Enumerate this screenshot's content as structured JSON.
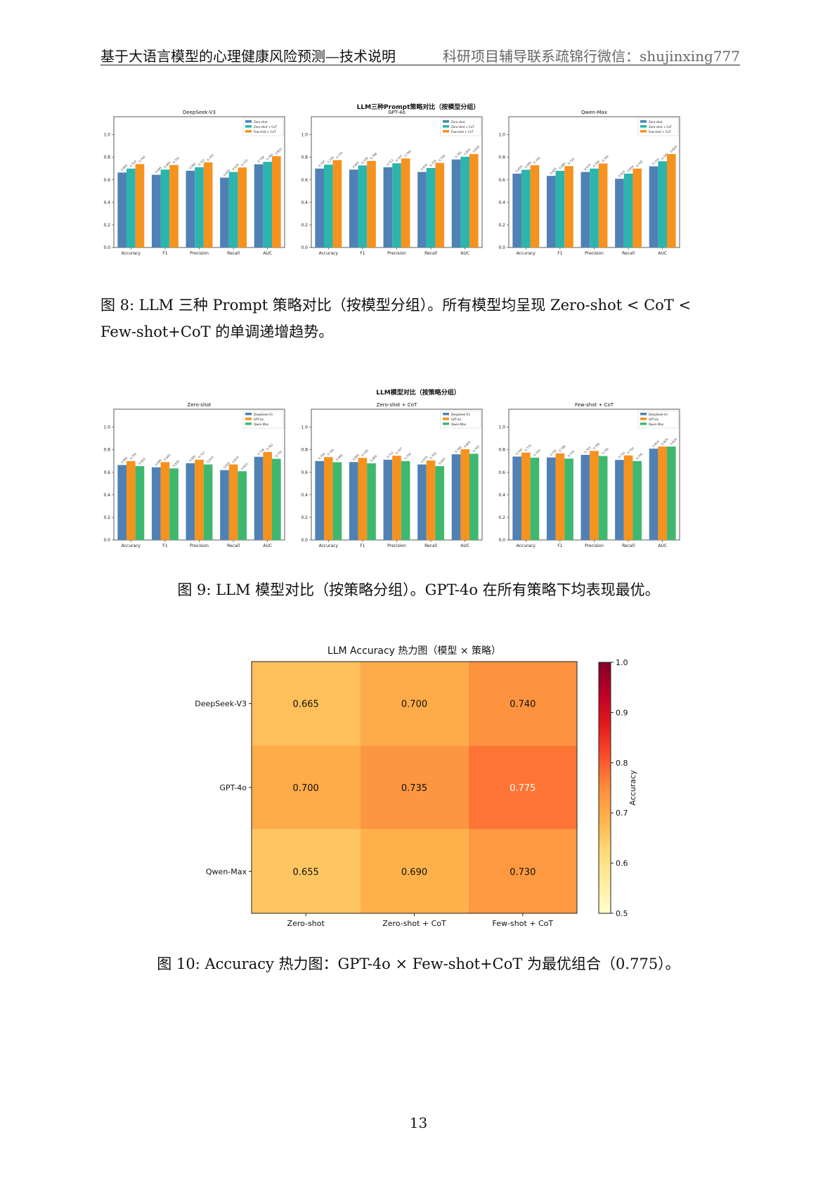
{
  "header": {
    "title": "基于大语言模型的心理健康风险预测—技术说明",
    "contact": "科研项目辅导联系疏锦行微信：shujinxing777"
  },
  "figure8": {
    "suptitle": "LLM三种Prompt策略对比（按模型分组）",
    "caption_line1": "图 8: LLM 三种 Prompt 策略对比（按模型分组）。所有模型均呈现 Zero-shot < CoT <",
    "caption_line2": "Few-shot+CoT 的单调递增趋势。"
  },
  "figure9": {
    "suptitle": "LLM模型对比（按策略分组）",
    "caption": "图 9: LLM 模型对比（按策略分组）。GPT-4o 在所有策略下均表现最优。"
  },
  "figure10": {
    "caption": "图 10: Accuracy 热力图：GPT-4o × Few-shot+CoT 为最优组合（0.775）。"
  },
  "page_number": "13",
  "chart_data": [
    {
      "type": "bar",
      "title": "DeepSeek-V3",
      "categories": [
        "Accuracy",
        "F1",
        "Precision",
        "Recall",
        "AUC"
      ],
      "series": [
        {
          "name": "Zero-shot",
          "values": [
            0.665,
            0.645,
            0.681,
            0.62,
            0.738
          ]
        },
        {
          "name": "Zero-shot + CoT",
          "values": [
            0.7,
            0.691,
            0.712,
            0.67,
            0.76
          ]
        },
        {
          "name": "Few-shot + CoT",
          "values": [
            0.74,
            0.732,
            0.755,
            0.71,
            0.81
          ]
        }
      ],
      "ylim": [
        0,
        1.0
      ],
      "yticks": [
        "0.0",
        "0.2",
        "0.4",
        "0.6",
        "0.8",
        "1.0"
      ],
      "legend": "top-right"
    },
    {
      "type": "bar",
      "title": "GPT-4o",
      "categories": [
        "Accuracy",
        "F1",
        "Precision",
        "Recall",
        "AUC"
      ],
      "series": [
        {
          "name": "Zero-shot",
          "values": [
            0.7,
            0.691,
            0.712,
            0.67,
            0.781
          ]
        },
        {
          "name": "Zero-shot + CoT",
          "values": [
            0.735,
            0.728,
            0.747,
            0.705,
            0.805
          ]
        },
        {
          "name": "Few-shot + CoT",
          "values": [
            0.775,
            0.768,
            0.79,
            0.75,
            0.829
          ]
        }
      ],
      "ylim": [
        0,
        1.0
      ],
      "yticks": [
        "0.0",
        "0.2",
        "0.4",
        "0.6",
        "0.8",
        "1.0"
      ],
      "legend": "top-right"
    },
    {
      "type": "bar",
      "title": "Qwen-Max",
      "categories": [
        "Accuracy",
        "F1",
        "Precision",
        "Recall",
        "AUC"
      ],
      "series": [
        {
          "name": "Zero-shot",
          "values": [
            0.655,
            0.635,
            0.67,
            0.61,
            0.72
          ]
        },
        {
          "name": "Zero-shot + CoT",
          "values": [
            0.69,
            0.68,
            0.7,
            0.655,
            0.765
          ]
        },
        {
          "name": "Few-shot + CoT",
          "values": [
            0.73,
            0.722,
            0.745,
            0.7,
            0.829
          ]
        }
      ],
      "ylim": [
        0,
        1.0
      ],
      "yticks": [
        "0.0",
        "0.2",
        "0.4",
        "0.6",
        "0.8",
        "1.0"
      ],
      "legend": "top-right"
    },
    {
      "type": "bar",
      "title": "Zero-shot",
      "categories": [
        "Accuracy",
        "F1",
        "Precision",
        "Recall",
        "AUC"
      ],
      "series": [
        {
          "name": "DeepSeek-V3",
          "values": [
            0.665,
            0.645,
            0.681,
            0.62,
            0.738
          ]
        },
        {
          "name": "GPT-4o",
          "values": [
            0.7,
            0.691,
            0.712,
            0.67,
            0.781
          ]
        },
        {
          "name": "Qwen-Max",
          "values": [
            0.655,
            0.635,
            0.67,
            0.61,
            0.72
          ]
        }
      ],
      "ylim": [
        0,
        1.0
      ],
      "yticks": [
        "0.0",
        "0.2",
        "0.4",
        "0.6",
        "0.8",
        "1.0"
      ],
      "legend": "top-right"
    },
    {
      "type": "bar",
      "title": "Zero-shot + CoT",
      "categories": [
        "Accuracy",
        "F1",
        "Precision",
        "Recall",
        "AUC"
      ],
      "series": [
        {
          "name": "DeepSeek-V3",
          "values": [
            0.7,
            0.691,
            0.712,
            0.67,
            0.76
          ]
        },
        {
          "name": "GPT-4o",
          "values": [
            0.735,
            0.728,
            0.747,
            0.705,
            0.805
          ]
        },
        {
          "name": "Qwen-Max",
          "values": [
            0.69,
            0.68,
            0.7,
            0.655,
            0.765
          ]
        }
      ],
      "ylim": [
        0,
        1.0
      ],
      "yticks": [
        "0.0",
        "0.2",
        "0.4",
        "0.6",
        "0.8",
        "1.0"
      ],
      "legend": "top-right"
    },
    {
      "type": "bar",
      "title": "Few-shot + CoT",
      "categories": [
        "Accuracy",
        "F1",
        "Precision",
        "Recall",
        "AUC"
      ],
      "series": [
        {
          "name": "DeepSeek-V3",
          "values": [
            0.74,
            0.732,
            0.755,
            0.71,
            0.81
          ]
        },
        {
          "name": "GPT-4o",
          "values": [
            0.775,
            0.768,
            0.79,
            0.75,
            0.829
          ]
        },
        {
          "name": "Qwen-Max",
          "values": [
            0.73,
            0.722,
            0.745,
            0.7,
            0.829
          ]
        }
      ],
      "ylim": [
        0,
        1.0
      ],
      "yticks": [
        "0.0",
        "0.2",
        "0.4",
        "0.6",
        "0.8",
        "1.0"
      ],
      "legend": "top-right"
    },
    {
      "type": "heatmap",
      "title": "LLM Accuracy 热力图（模型 × 策略）",
      "rows": [
        "DeepSeek-V3",
        "GPT-4o",
        "Qwen-Max"
      ],
      "cols": [
        "Zero-shot",
        "Zero-shot + CoT",
        "Few-shot + CoT"
      ],
      "cell_labels": [
        [
          "0.665",
          "0.700",
          "0.740"
        ],
        [
          "0.700",
          "0.735",
          "0.775"
        ],
        [
          "0.655",
          "0.690",
          "0.730"
        ]
      ],
      "values": [
        [
          0.665,
          0.7,
          0.74
        ],
        [
          0.7,
          0.735,
          0.775
        ],
        [
          0.655,
          0.69,
          0.73
        ]
      ],
      "colorbar_label": "Accuracy",
      "colorbar_range": [
        0.5,
        1.0
      ],
      "colorbar_ticks": [
        "0.5",
        "0.6",
        "0.7",
        "0.8",
        "0.9",
        "1.0"
      ],
      "colormap": "YlOrRd"
    }
  ],
  "colors": {
    "strategy": [
      "#4f81b5",
      "#2bb5ad",
      "#f6921e"
    ],
    "model": [
      "#4f81b5",
      "#f6921e",
      "#3fb86f"
    ]
  }
}
